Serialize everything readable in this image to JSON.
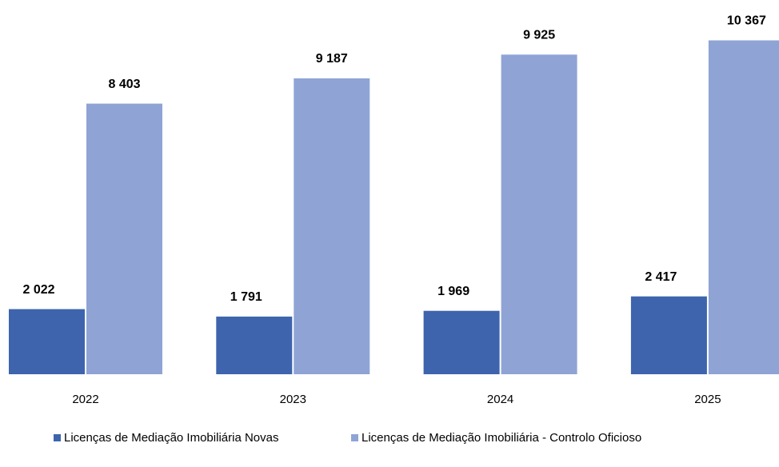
{
  "chart_data": {
    "type": "bar",
    "categories": [
      "2022",
      "2023",
      "2024",
      "2025"
    ],
    "series": [
      {
        "name": "Licenças de Mediação Imobiliária Novas",
        "color": "#3d64ad",
        "values": [
          2022,
          1791,
          1969,
          2417
        ],
        "value_labels": [
          "2 022",
          "1 791",
          "1 969",
          "2 417"
        ]
      },
      {
        "name": "Licenças de Mediação Imobiliária - Controlo Oficioso",
        "color": "#8fa4d5",
        "values": [
          8403,
          9187,
          9925,
          10367
        ],
        "value_labels": [
          "8 403",
          "9 187",
          "9 925",
          "10 367"
        ]
      }
    ],
    "ylim": [
      0,
      11000
    ],
    "legend": "bottom"
  }
}
